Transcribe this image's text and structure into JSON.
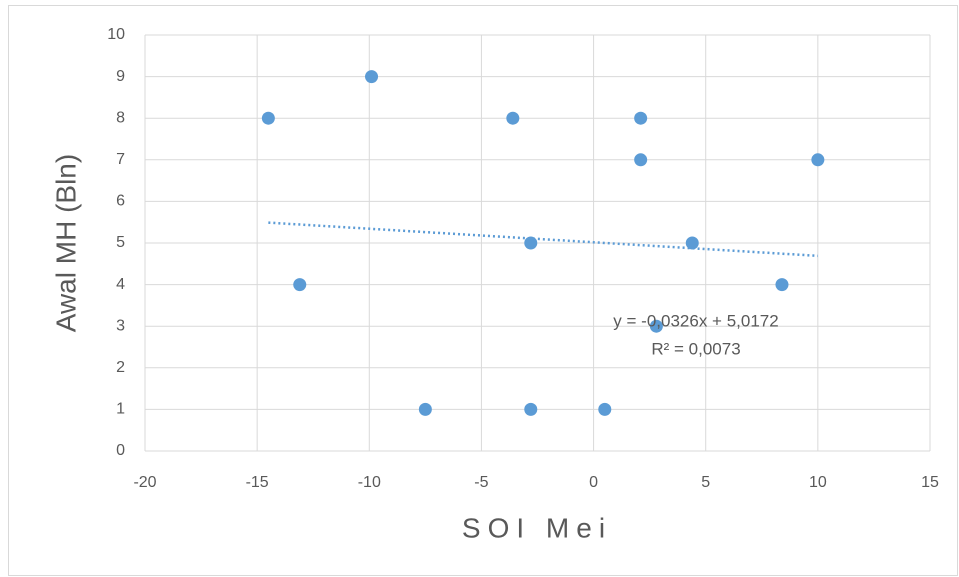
{
  "chart_data": {
    "type": "scatter",
    "x_label": "SOI Mei",
    "y_label": "Awal MH (Bln)",
    "color": "#5b9bd5",
    "x": [
      -14.5,
      -9.9,
      -3.6,
      2.1,
      2.1,
      10,
      -2.8,
      4.4,
      -13.1,
      8.4,
      2.8,
      -7.5,
      -2.8,
      0.5
    ],
    "values": [
      8,
      9,
      8,
      8,
      7,
      7,
      5,
      5,
      4,
      4,
      3,
      1,
      1,
      1
    ],
    "xlim": [
      -20,
      15
    ],
    "xticks": [
      -20,
      -15,
      -10,
      -5,
      0,
      5,
      10,
      15
    ],
    "ylim": [
      0,
      10
    ],
    "yticks": [
      0,
      1,
      2,
      3,
      4,
      5,
      6,
      7,
      8,
      9,
      10
    ],
    "grid": true,
    "trendline": {
      "slope": -0.0326,
      "intercept": 5.0172,
      "label": "y = -0,0326x + 5,0172",
      "r2_label": "R² = 0,0073"
    }
  }
}
